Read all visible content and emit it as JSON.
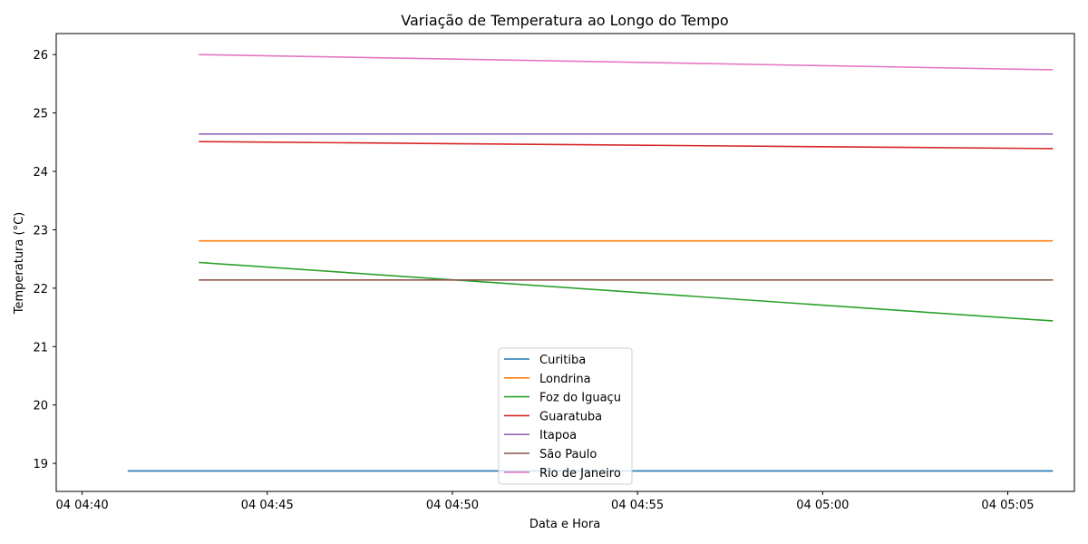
{
  "chart_data": {
    "type": "line",
    "title": "Variação de Temperatura ao Longo do Tempo",
    "xlabel": "Data e Hora",
    "ylabel": "Temperatura (°C)",
    "xlim": [
      -0.7,
      26.8
    ],
    "ylim": [
      18.52,
      26.36
    ],
    "x_unit": "minutes after 04 04:40",
    "x_ticks": [
      {
        "value": 0,
        "label": "04 04:40"
      },
      {
        "value": 5,
        "label": "04 04:45"
      },
      {
        "value": 10,
        "label": "04 04:50"
      },
      {
        "value": 15,
        "label": "04 04:55"
      },
      {
        "value": 20,
        "label": "04 05:00"
      },
      {
        "value": 25,
        "label": "04 05:05"
      }
    ],
    "y_ticks": [
      {
        "value": 19,
        "label": "19"
      },
      {
        "value": 20,
        "label": "20"
      },
      {
        "value": 21,
        "label": "21"
      },
      {
        "value": 22,
        "label": "22"
      },
      {
        "value": 23,
        "label": "23"
      },
      {
        "value": 24,
        "label": "24"
      },
      {
        "value": 25,
        "label": "25"
      },
      {
        "value": 26,
        "label": "26"
      }
    ],
    "grid": false,
    "legend_position": "lower-center",
    "series": [
      {
        "name": "Curitiba",
        "color": "#1f77b4",
        "x": [
          1.25,
          26.2
        ],
        "y": [
          18.87,
          18.87
        ]
      },
      {
        "name": "Londrina",
        "color": "#ff7f0e",
        "x": [
          3.17,
          26.2
        ],
        "y": [
          22.81,
          22.81
        ]
      },
      {
        "name": "Foz do Iguaçu",
        "color": "#2ca02c",
        "x": [
          3.17,
          26.2
        ],
        "y": [
          22.44,
          21.44
        ]
      },
      {
        "name": "Guaratuba",
        "color": "#d62728",
        "x": [
          3.17,
          26.2
        ],
        "y": [
          24.51,
          24.39
        ]
      },
      {
        "name": "Itapoa",
        "color": "#9467bd",
        "x": [
          3.17,
          26.2
        ],
        "y": [
          24.64,
          24.64
        ]
      },
      {
        "name": "São Paulo",
        "color": "#8c564b",
        "x": [
          3.17,
          26.2
        ],
        "y": [
          22.14,
          22.14
        ]
      },
      {
        "name": "Rio de Janeiro",
        "color": "#e377c2",
        "x": [
          3.17,
          26.2
        ],
        "y": [
          26.0,
          25.74
        ]
      }
    ]
  }
}
